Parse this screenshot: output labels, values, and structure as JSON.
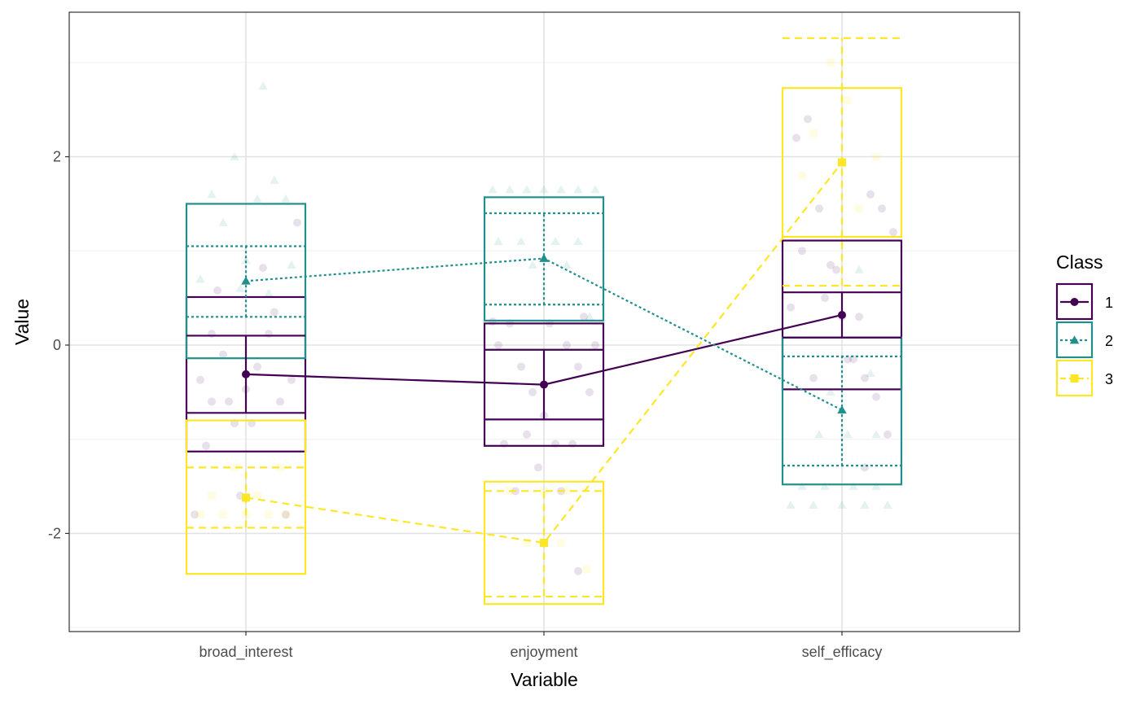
{
  "chart_data": {
    "type": "line",
    "xlabel": "Variable",
    "ylabel": "Value",
    "categories": [
      "broad_interest",
      "enjoyment",
      "self_efficacy"
    ],
    "ylim": [
      -3.0,
      3.55
    ],
    "y_ticks": [
      -2,
      0,
      2
    ],
    "y_tick_labels": [
      "-2",
      "0",
      "2"
    ],
    "grid": true,
    "legend": {
      "title": "Class",
      "position": "right",
      "labels": [
        "1",
        "2",
        "3"
      ]
    },
    "series": [
      {
        "name": "1",
        "color": "#440154",
        "marker": "circle",
        "linestyle": "solid",
        "means": [
          -0.31,
          -0.42,
          0.32
        ],
        "se_bars": [
          [
            -0.72,
            0.1
          ],
          [
            -0.79,
            -0.05
          ],
          [
            0.08,
            0.56
          ]
        ],
        "sd_boxes": [
          [
            -1.13,
            0.51
          ],
          [
            -1.07,
            0.23
          ],
          [
            -0.47,
            1.11
          ]
        ],
        "points": [
          [
            [
              -0.8,
              -0.37
            ],
            [
              -0.6,
              -0.6
            ],
            [
              -0.4,
              -0.1
            ],
            [
              -0.2,
              -0.83
            ],
            [
              0.0,
              -0.47
            ],
            [
              0.2,
              -0.23
            ],
            [
              0.4,
              0.12
            ],
            [
              0.6,
              -0.6
            ],
            [
              0.8,
              -0.37
            ],
            [
              -0.7,
              -1.07
            ],
            [
              -0.3,
              -0.6
            ],
            [
              0.1,
              -0.83
            ],
            [
              0.5,
              0.35
            ],
            [
              -0.5,
              0.58
            ],
            [
              0.3,
              0.82
            ],
            [
              0.9,
              1.3
            ],
            [
              -0.9,
              -1.8
            ],
            [
              -0.1,
              -1.6
            ],
            [
              0.7,
              -1.8
            ],
            [
              -0.6,
              0.12
            ]
          ],
          [
            [
              -0.8,
              0.0
            ],
            [
              -0.6,
              0.23
            ],
            [
              -0.4,
              -0.23
            ],
            [
              -0.2,
              -0.5
            ],
            [
              0.0,
              -0.75
            ],
            [
              0.2,
              -1.05
            ],
            [
              0.4,
              0.0
            ],
            [
              0.6,
              -0.23
            ],
            [
              0.8,
              -0.5
            ],
            [
              -0.7,
              -1.05
            ],
            [
              -0.3,
              -0.95
            ],
            [
              0.1,
              0.23
            ],
            [
              0.5,
              -1.05
            ],
            [
              0.9,
              0.0
            ],
            [
              -0.5,
              -1.55
            ],
            [
              0.3,
              -1.55
            ],
            [
              0.6,
              -2.4
            ],
            [
              -0.1,
              -1.3
            ],
            [
              0.7,
              0.3
            ],
            [
              -0.9,
              0.25
            ]
          ],
          [
            [
              -0.8,
              2.2
            ],
            [
              -0.6,
              2.4
            ],
            [
              -0.4,
              1.45
            ],
            [
              -0.2,
              0.85
            ],
            [
              0.0,
              0.3
            ],
            [
              0.2,
              -0.15
            ],
            [
              0.4,
              -0.35
            ],
            [
              0.6,
              -0.55
            ],
            [
              0.8,
              -0.95
            ],
            [
              -0.7,
              1.0
            ],
            [
              -0.3,
              0.5
            ],
            [
              0.1,
              -0.15
            ],
            [
              0.5,
              1.6
            ],
            [
              0.9,
              1.2
            ],
            [
              -0.5,
              -0.35
            ],
            [
              0.3,
              0.3
            ],
            [
              0.7,
              1.45
            ],
            [
              -0.1,
              0.8
            ],
            [
              -0.9,
              0.4
            ],
            [
              0.4,
              -1.3
            ]
          ]
        ]
      },
      {
        "name": "2",
        "color": "#21908C",
        "marker": "triangle",
        "linestyle": "dotted",
        "means": [
          0.68,
          0.92,
          -0.69
        ],
        "se_bars": [
          [
            0.3,
            1.05
          ],
          [
            0.43,
            1.4
          ],
          [
            -1.28,
            -0.12
          ]
        ],
        "sd_boxes": [
          [
            -0.14,
            1.5
          ],
          [
            0.26,
            1.57
          ],
          [
            -1.48,
            0.08
          ]
        ],
        "points": [
          [
            [
              -0.6,
              1.6
            ],
            [
              -0.2,
              2.0
            ],
            [
              0.2,
              1.55
            ],
            [
              0.5,
              1.75
            ],
            [
              0.7,
              1.55
            ],
            [
              -0.4,
              1.3
            ],
            [
              0.0,
              0.9
            ],
            [
              0.4,
              0.55
            ],
            [
              -0.8,
              0.7
            ],
            [
              0.8,
              0.85
            ],
            [
              0.3,
              2.75
            ],
            [
              -0.1,
              0.6
            ]
          ],
          [
            [
              -0.9,
              1.65
            ],
            [
              -0.6,
              1.65
            ],
            [
              -0.3,
              1.65
            ],
            [
              0.0,
              1.65
            ],
            [
              0.3,
              1.65
            ],
            [
              0.6,
              1.65
            ],
            [
              0.9,
              1.65
            ],
            [
              -0.8,
              1.1
            ],
            [
              -0.4,
              1.1
            ],
            [
              0.2,
              1.1
            ],
            [
              0.6,
              1.1
            ],
            [
              -0.2,
              0.85
            ],
            [
              0.4,
              0.85
            ],
            [
              0.8,
              0.3
            ]
          ],
          [
            [
              -0.9,
              -1.7
            ],
            [
              -0.5,
              -1.7
            ],
            [
              0.0,
              -1.7
            ],
            [
              0.4,
              -1.7
            ],
            [
              0.8,
              -1.7
            ],
            [
              -0.7,
              -1.5
            ],
            [
              -0.3,
              -1.5
            ],
            [
              0.2,
              -1.5
            ],
            [
              0.6,
              -1.5
            ],
            [
              -0.4,
              -0.95
            ],
            [
              0.1,
              -0.95
            ],
            [
              0.6,
              -0.95
            ],
            [
              -0.2,
              -0.5
            ],
            [
              0.5,
              -0.3
            ],
            [
              0.3,
              0.8
            ]
          ]
        ]
      },
      {
        "name": "3",
        "color": "#FDE725",
        "marker": "square",
        "linestyle": "dashed",
        "means": [
          -1.62,
          -2.1,
          1.94
        ],
        "se_bars": [
          [
            -1.94,
            -1.3
          ],
          [
            -2.67,
            -1.55
          ],
          [
            0.63,
            3.26
          ]
        ],
        "sd_boxes": [
          [
            -2.43,
            -0.8
          ],
          [
            -2.75,
            -1.45
          ],
          [
            1.15,
            2.73
          ]
        ],
        "points": [
          [
            [
              -0.8,
              -1.8
            ],
            [
              -0.4,
              -1.8
            ],
            [
              0.0,
              -1.8
            ],
            [
              0.4,
              -1.8
            ],
            [
              0.7,
              -1.8
            ],
            [
              -0.6,
              -1.6
            ],
            [
              0.2,
              -1.6
            ],
            [
              0.6,
              -1.3
            ],
            [
              -0.2,
              -1.3
            ]
          ],
          [
            [
              -0.6,
              -1.55
            ],
            [
              0.0,
              -1.55
            ],
            [
              0.4,
              -1.55
            ],
            [
              0.75,
              -2.38
            ],
            [
              -0.3,
              -2.1
            ],
            [
              0.3,
              -2.1
            ]
          ],
          [
            [
              -0.5,
              2.25
            ],
            [
              -0.2,
              3.0
            ],
            [
              0.3,
              1.45
            ],
            [
              0.6,
              2.0
            ],
            [
              0.1,
              2.6
            ],
            [
              -0.7,
              1.8
            ]
          ]
        ]
      }
    ]
  }
}
